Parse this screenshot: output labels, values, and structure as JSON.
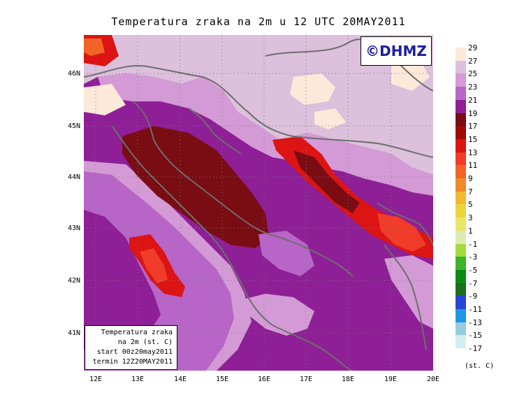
{
  "title": "Temperatura zraka na 2m u 12 UTC 20MAY2011",
  "brand": "©DHMZ",
  "info_box": [
    "Temperatura zraka",
    "na 2m (st. C)",
    "start 00z20may2011",
    "termin 12Z20MAY2011"
  ],
  "lat_labels": [
    "46N",
    "45N",
    "44N",
    "43N",
    "42N",
    "41N"
  ],
  "lon_labels": [
    "12E",
    "13E",
    "14E",
    "15E",
    "16E",
    "17E",
    "18E",
    "19E",
    "20E"
  ],
  "legend": {
    "labels": [
      "29",
      "27",
      "25",
      "23",
      "21",
      "19",
      "17",
      "15",
      "13",
      "11",
      "9",
      "7",
      "5",
      "3",
      "1",
      "-1",
      "-3",
      "-5",
      "-7",
      "-9",
      "-11",
      "-13",
      "-15",
      "-17"
    ],
    "colors": [
      "#fde9d9",
      "#dcc0dc",
      "#d49ad6",
      "#b865c8",
      "#8e1f96",
      "#7a0c14",
      "#a00a0a",
      "#dc1414",
      "#f03c28",
      "#f26426",
      "#ee8b28",
      "#f2b832",
      "#ecd43c",
      "#e8e668",
      "#dcecb4",
      "#a2dc3c",
      "#3cb428",
      "#0a8c14",
      "#1e6e1e",
      "#2846d2",
      "#1e96e6",
      "#96cce0",
      "#d2eef0",
      "#f0fafc"
    ],
    "unit": "(st. C)"
  },
  "colors": {
    "base_purple": "#8e1f96",
    "light_purple": "#d49ad6",
    "mid_purple": "#b865c8",
    "pale_lilac": "#dcc0dc",
    "cream": "#fde9d9",
    "dark_red": "#7a0c14",
    "red": "#dc1414",
    "bright_red": "#f03c28",
    "coastline": "#6e6e6e"
  }
}
